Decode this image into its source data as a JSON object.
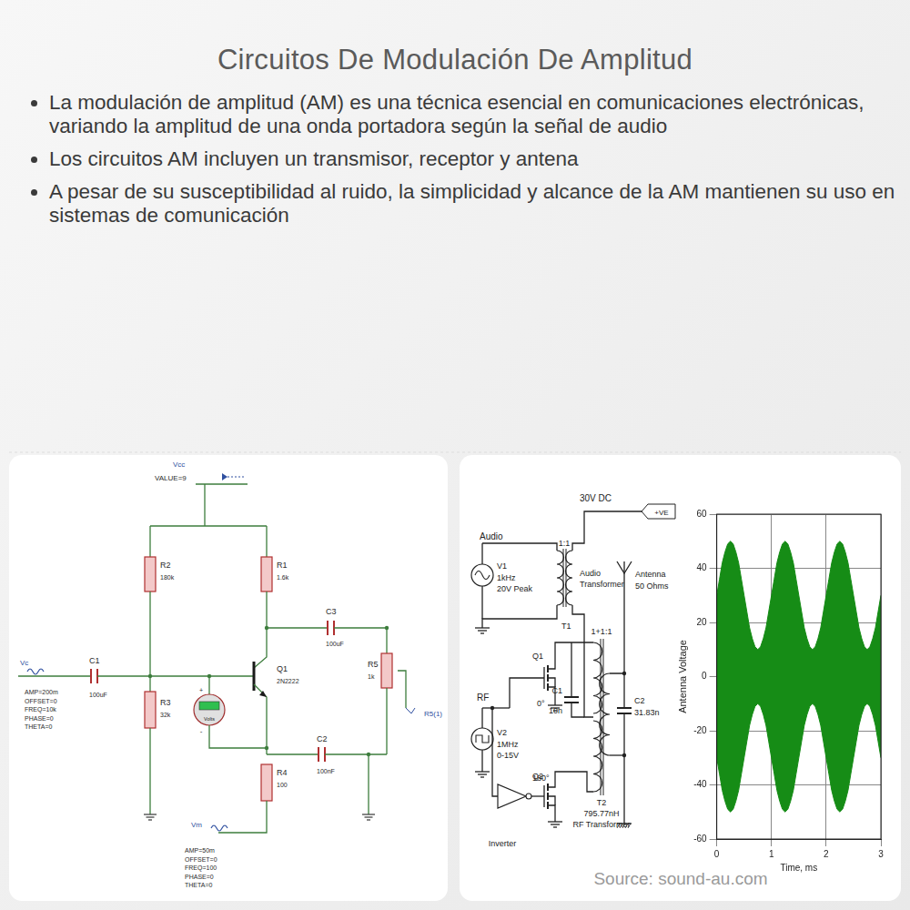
{
  "header": {
    "title": "Circuitos De Modulación De Amplitud"
  },
  "bullets": [
    "La modulación de amplitud (AM) es una técnica esencial en comunicaciones electrónicas, variando la amplitud de una onda portadora según la señal de audio",
    "Los circuitos AM incluyen un transmisor, receptor y antena",
    "A pesar de su susceptibilidad al ruido, la simplicidad y alcance de la AM mantienen su uso en sistemas de comunicación"
  ],
  "circuit_1": {
    "vcc": {
      "name": "Vcc",
      "value": "VALUE=9"
    },
    "r1": {
      "name": "R1",
      "value": "1.6k"
    },
    "r2": {
      "name": "R2",
      "value": "180k"
    },
    "r3": {
      "name": "R3",
      "value": "32k"
    },
    "r4": {
      "name": "R4",
      "value": "100"
    },
    "r5": {
      "name": "R5",
      "value": "1k"
    },
    "c1": {
      "name": "C1",
      "value": "100uF"
    },
    "c2": {
      "name": "C2",
      "value": "100nF"
    },
    "c3": {
      "name": "C3",
      "value": "100uF"
    },
    "q1": {
      "name": "Q1",
      "value": "2N2222"
    },
    "vc": {
      "name": "Vc",
      "params": [
        "AMP=200m",
        "OFFSET=0",
        "FREQ=10k",
        "PHASE=0",
        "THETA=0"
      ]
    },
    "vm": {
      "name": "Vm",
      "params": [
        "AMP=50m",
        "OFFSET=0",
        "FREQ=100",
        "PHASE=0",
        "THETA=0"
      ]
    },
    "voltmeter": {
      "label": "Volts",
      "plus": "+",
      "minus": "-"
    },
    "probe": "R5(1)"
  },
  "circuit_2": {
    "supply": "30V DC",
    "supply_tag": "+VE",
    "audio_label": "Audio",
    "v1": {
      "name": "V1",
      "lines": [
        "1kHz",
        "20V Peak"
      ]
    },
    "t1": {
      "name": "T1",
      "ratio": "1:1",
      "lines": [
        "Audio",
        "Transformer"
      ]
    },
    "antenna": {
      "lines": [
        "Antenna",
        "50 Ohms"
      ]
    },
    "t2": {
      "name": "T2",
      "ratio": "1+1:1",
      "lines": [
        "795.77nH",
        "RF Transformer"
      ]
    },
    "q1": "Q1",
    "q2": "Q2",
    "c1": {
      "name": "C1",
      "value": "10n"
    },
    "c2": {
      "name": "C2",
      "value": "31.83n"
    },
    "rf_label": "RF",
    "v2": {
      "name": "V2",
      "lines": [
        "1MHz",
        "0-15V"
      ]
    },
    "phase_0": "0°",
    "phase_180": "180°",
    "inverter": "Inverter"
  },
  "source": "Source: sound-au.com",
  "chart_data": {
    "type": "area",
    "x_label": "Time, ms",
    "y_label": "Antenna Voltage",
    "x": [
      0,
      0.05,
      0.1,
      0.15,
      0.2,
      0.25,
      0.3,
      0.35,
      0.4,
      0.45,
      0.5,
      0.55,
      0.6,
      0.65,
      0.7,
      0.75,
      0.8,
      0.85,
      0.9,
      0.95,
      1,
      1.05,
      1.1,
      1.15,
      1.2,
      1.25,
      1.3,
      1.35,
      1.4,
      1.45,
      1.5,
      1.55,
      1.6,
      1.65,
      1.7,
      1.75,
      1.8,
      1.85,
      1.9,
      1.95,
      2,
      2.05,
      2.1,
      2.15,
      2.2,
      2.25,
      2.3,
      2.35,
      2.4,
      2.45,
      2.5,
      2.55,
      2.6,
      2.65,
      2.7,
      2.75,
      2.8,
      2.85,
      2.9,
      2.95,
      3
    ],
    "series": [
      {
        "color": "#168c16",
        "values": [
          30,
          36,
          42,
          46,
          49,
          50,
          49,
          46,
          42,
          36,
          30,
          24,
          18,
          14,
          11,
          10,
          11,
          14,
          18,
          24,
          30,
          36,
          42,
          46,
          49,
          50,
          49,
          46,
          42,
          36,
          30,
          24,
          18,
          14,
          11,
          10,
          11,
          14,
          18,
          24,
          30,
          36,
          42,
          46,
          49,
          50,
          49,
          46,
          42,
          36,
          30,
          24,
          18,
          14,
          11,
          10,
          11,
          14,
          18,
          24,
          30
        ]
      },
      {
        "color": "#168c16",
        "values": [
          -30,
          -36,
          -42,
          -46,
          -49,
          -50,
          -49,
          -46,
          -42,
          -36,
          -30,
          -24,
          -18,
          -14,
          -11,
          -10,
          -11,
          -14,
          -18,
          -24,
          -30,
          -36,
          -42,
          -46,
          -49,
          -50,
          -49,
          -46,
          -42,
          -36,
          -30,
          -24,
          -18,
          -14,
          -11,
          -10,
          -11,
          -14,
          -18,
          -24,
          -30,
          -36,
          -42,
          -46,
          -49,
          -50,
          -49,
          -46,
          -42,
          -36,
          -30,
          -24,
          -18,
          -14,
          -11,
          -10,
          -11,
          -14,
          -18,
          -24,
          -30
        ]
      }
    ],
    "xlim": [
      0,
      3
    ],
    "xticks": [
      0,
      1,
      2,
      3
    ],
    "ylim": [
      -60,
      60
    ],
    "yticks": [
      -60,
      -40,
      -20,
      0,
      20,
      40,
      60
    ],
    "grid": true
  }
}
